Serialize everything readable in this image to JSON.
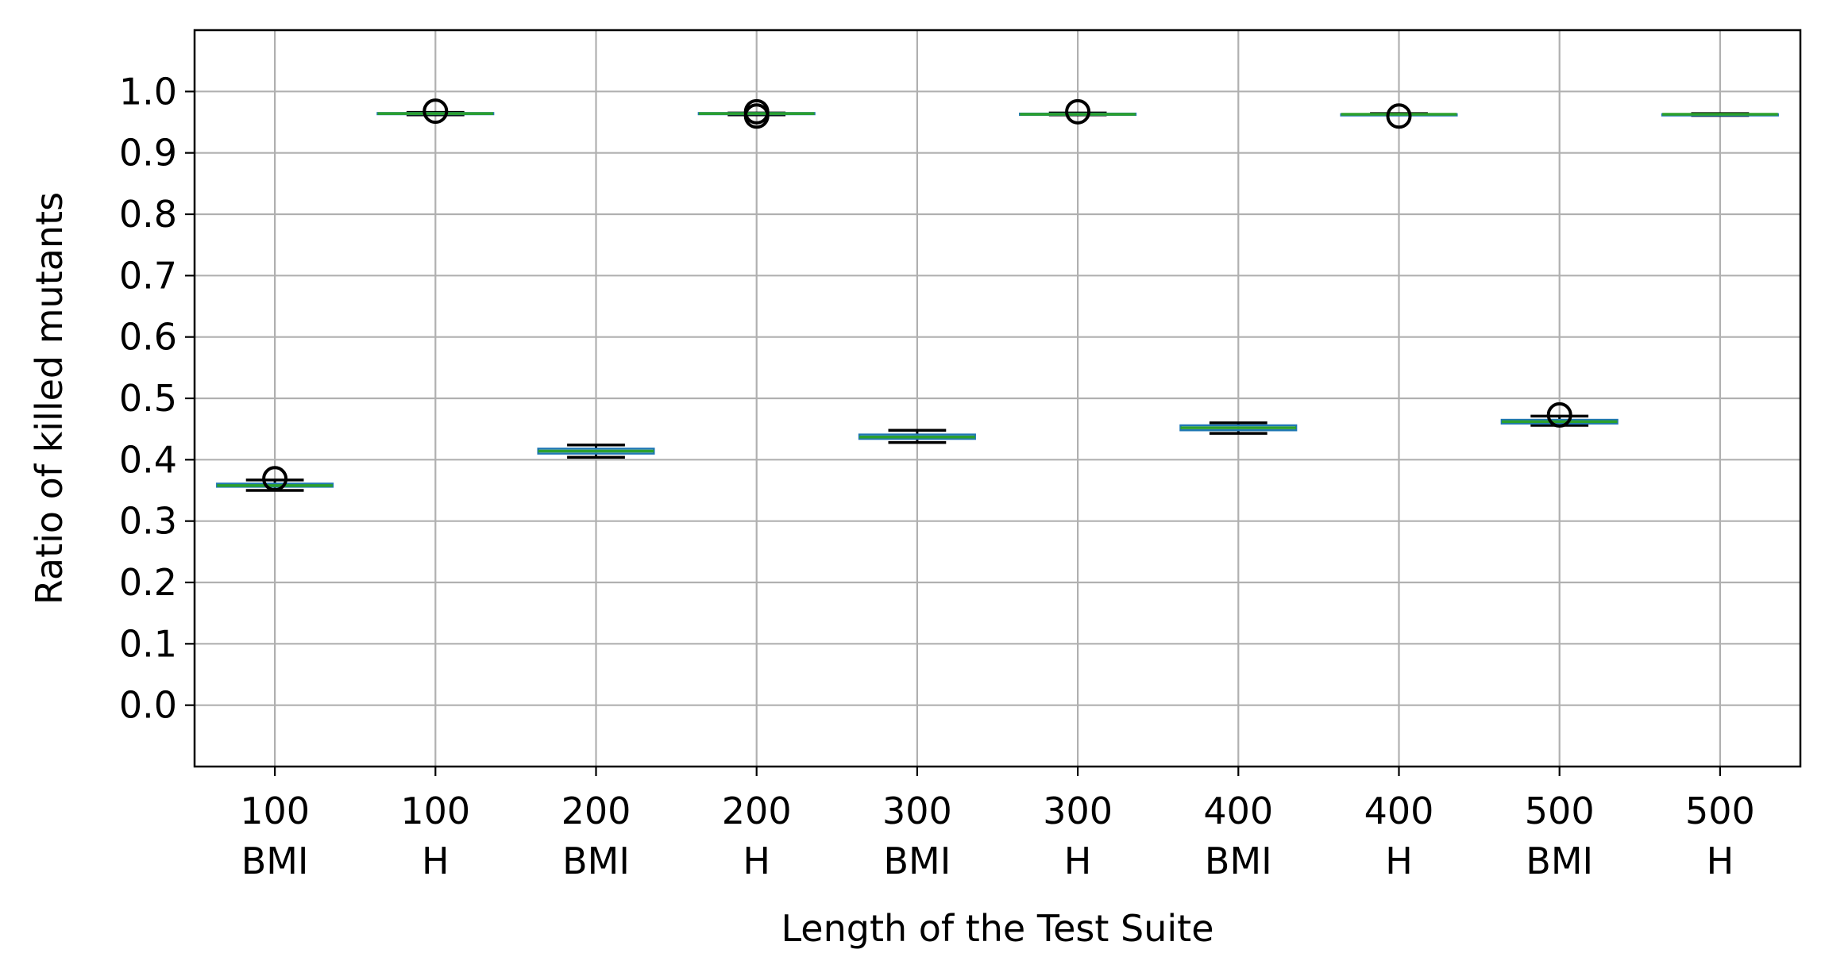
{
  "chart_data": {
    "type": "box",
    "xlabel": "Length of the Test Suite",
    "ylabel": "Ratio of killed mutants",
    "ylim": [
      -0.1,
      1.1
    ],
    "yticks": [
      "0.0",
      "0.1",
      "0.2",
      "0.3",
      "0.4",
      "0.5",
      "0.6",
      "0.7",
      "0.8",
      "0.9",
      "1.0"
    ],
    "grid": true,
    "categories": [
      {
        "line1": "100",
        "line2": "BMI"
      },
      {
        "line1": "100",
        "line2": "H"
      },
      {
        "line1": "200",
        "line2": "BMI"
      },
      {
        "line1": "200",
        "line2": "H"
      },
      {
        "line1": "300",
        "line2": "BMI"
      },
      {
        "line1": "300",
        "line2": "H"
      },
      {
        "line1": "400",
        "line2": "BMI"
      },
      {
        "line1": "400",
        "line2": "H"
      },
      {
        "line1": "500",
        "line2": "BMI"
      },
      {
        "line1": "500",
        "line2": "H"
      }
    ],
    "boxes": [
      {
        "whislo": 0.35,
        "q1": 0.356,
        "med": 0.358,
        "q3": 0.361,
        "whishi": 0.367,
        "fliers": [
          0.369
        ]
      },
      {
        "whislo": 0.962,
        "q1": 0.963,
        "med": 0.964,
        "q3": 0.965,
        "whishi": 0.966,
        "fliers": [
          0.968
        ]
      },
      {
        "whislo": 0.404,
        "q1": 0.41,
        "med": 0.414,
        "q3": 0.418,
        "whishi": 0.424,
        "fliers": []
      },
      {
        "whislo": 0.962,
        "q1": 0.963,
        "med": 0.964,
        "q3": 0.965,
        "whishi": 0.965,
        "fliers": [
          0.96,
          0.967
        ]
      },
      {
        "whislo": 0.428,
        "q1": 0.434,
        "med": 0.437,
        "q3": 0.441,
        "whishi": 0.448,
        "fliers": []
      },
      {
        "whislo": 0.962,
        "q1": 0.962,
        "med": 0.963,
        "q3": 0.964,
        "whishi": 0.965,
        "fliers": [
          0.967
        ]
      },
      {
        "whislo": 0.443,
        "q1": 0.448,
        "med": 0.452,
        "q3": 0.456,
        "whishi": 0.46,
        "fliers": []
      },
      {
        "whislo": 0.962,
        "q1": 0.962,
        "med": 0.963,
        "q3": 0.963,
        "whishi": 0.964,
        "fliers": [
          0.96
        ]
      },
      {
        "whislo": 0.456,
        "q1": 0.459,
        "med": 0.462,
        "q3": 0.465,
        "whishi": 0.471,
        "fliers": [
          0.473
        ]
      },
      {
        "whislo": 0.961,
        "q1": 0.962,
        "med": 0.963,
        "q3": 0.963,
        "whishi": 0.964,
        "fliers": []
      }
    ],
    "colors": {
      "box": "#1f77b4",
      "median": "#2ca02c",
      "whisker": "#000000",
      "grid": "#b0b0b0"
    }
  }
}
